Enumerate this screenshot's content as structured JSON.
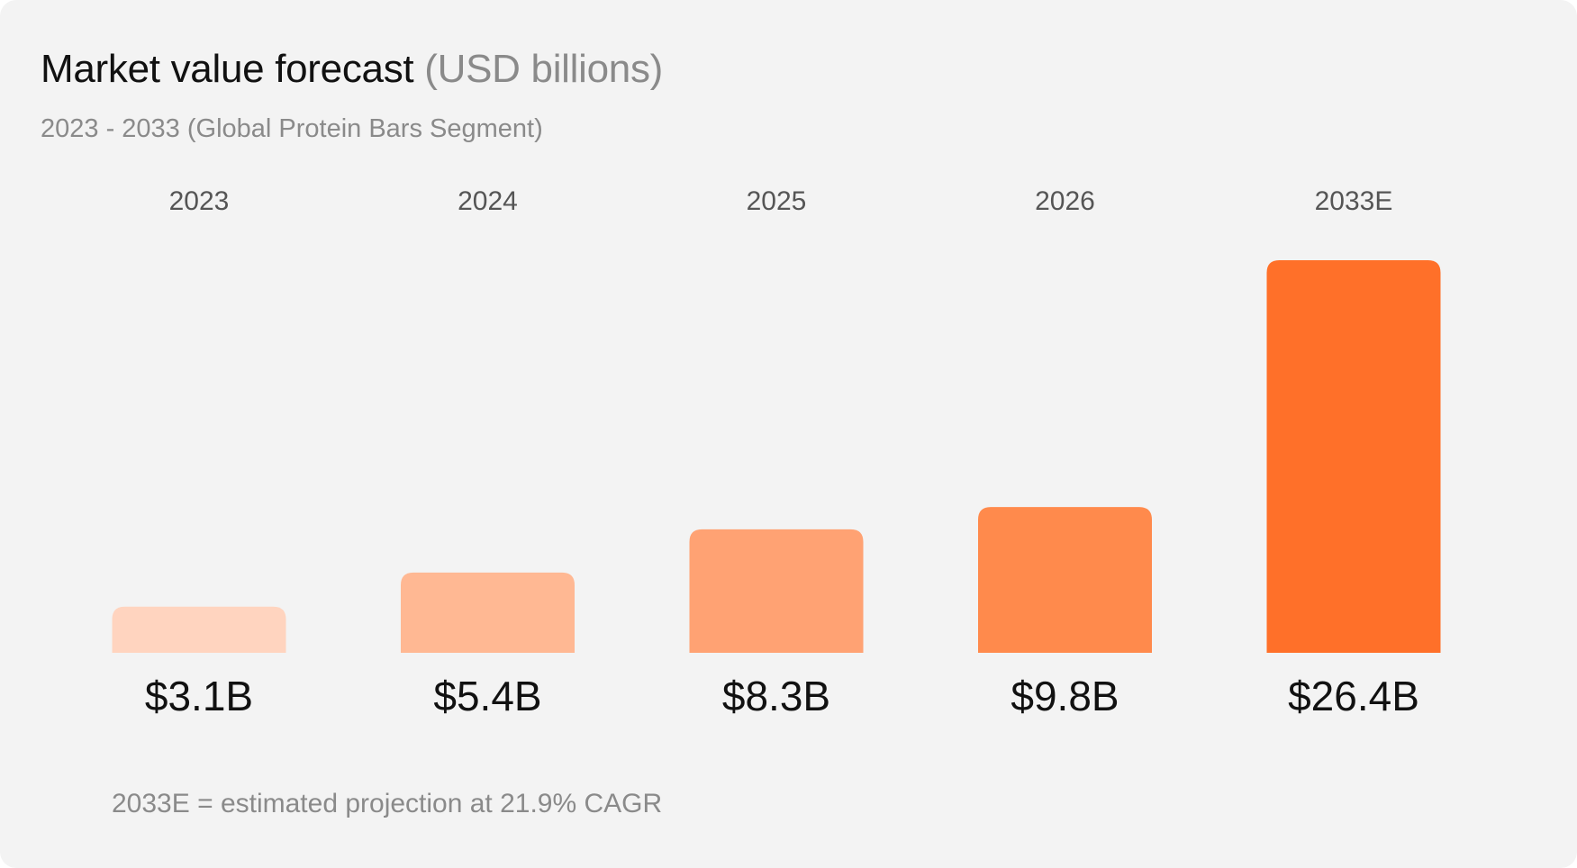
{
  "header": {
    "title": "Market value forecast",
    "title_unit": "(USD billions)",
    "subtitle": "2023 - 2033 (Global Protein Bars Segment)"
  },
  "chart_data": {
    "type": "bar",
    "title": "Market value forecast (USD billions)",
    "subtitle": "2023 - 2033 (Global Protein Bars Segment)",
    "categories": [
      "2023",
      "2024",
      "2025",
      "2026",
      "2033E"
    ],
    "values": [
      3.1,
      5.4,
      8.3,
      9.8,
      26.4
    ],
    "value_labels": [
      "$3.1B",
      "$5.4B",
      "$8.3B",
      "$9.8B",
      "$26.4B"
    ],
    "bar_colors": [
      "#ffd4bf",
      "#ffb893",
      "#ffa273",
      "#ff8a4c",
      "#ff7029"
    ],
    "xlabel": "",
    "ylabel": "",
    "ylim": [
      0,
      26.4
    ],
    "grid": false,
    "legend": "none",
    "category_label_position": "top",
    "value_label_position": "bottom"
  },
  "footnote": "2033E = estimated projection at 21.9% CAGR"
}
